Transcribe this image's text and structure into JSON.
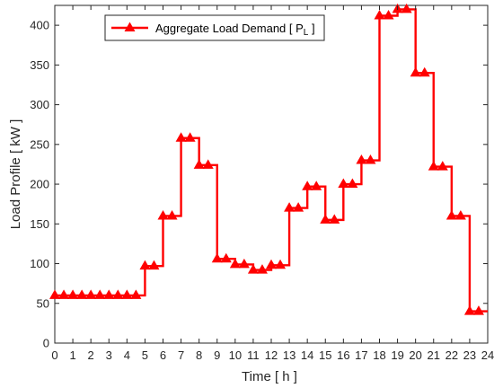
{
  "chart_data": {
    "type": "line",
    "step": "post",
    "xlabel": "Time [ h ]",
    "ylabel": "Load Profile [ kW ]",
    "xlim": [
      0,
      24
    ],
    "ylim": [
      0,
      425
    ],
    "xticks": [
      0,
      1,
      2,
      3,
      4,
      5,
      6,
      7,
      8,
      9,
      10,
      11,
      12,
      13,
      14,
      15,
      16,
      17,
      18,
      19,
      20,
      21,
      22,
      23,
      24
    ],
    "yticks": [
      0,
      50,
      100,
      150,
      200,
      250,
      300,
      350,
      400
    ],
    "grid": false,
    "legend_location": "top-left",
    "series": [
      {
        "name": "Aggregate Load Demand [ P",
        "name_subscript": "L",
        "name_suffix": " ]",
        "color": "#ff0000",
        "marker": "triangle-up",
        "x": [
          0,
          1,
          2,
          3,
          4,
          5,
          6,
          7,
          8,
          9,
          10,
          11,
          12,
          13,
          14,
          15,
          16,
          17,
          18,
          19,
          20,
          21,
          22,
          23
        ],
        "values": [
          60,
          60,
          60,
          60,
          60,
          97,
          160,
          258,
          224,
          106,
          99,
          92,
          98,
          170,
          197,
          155,
          200,
          230,
          412,
          420,
          340,
          222,
          160,
          40
        ]
      }
    ]
  }
}
